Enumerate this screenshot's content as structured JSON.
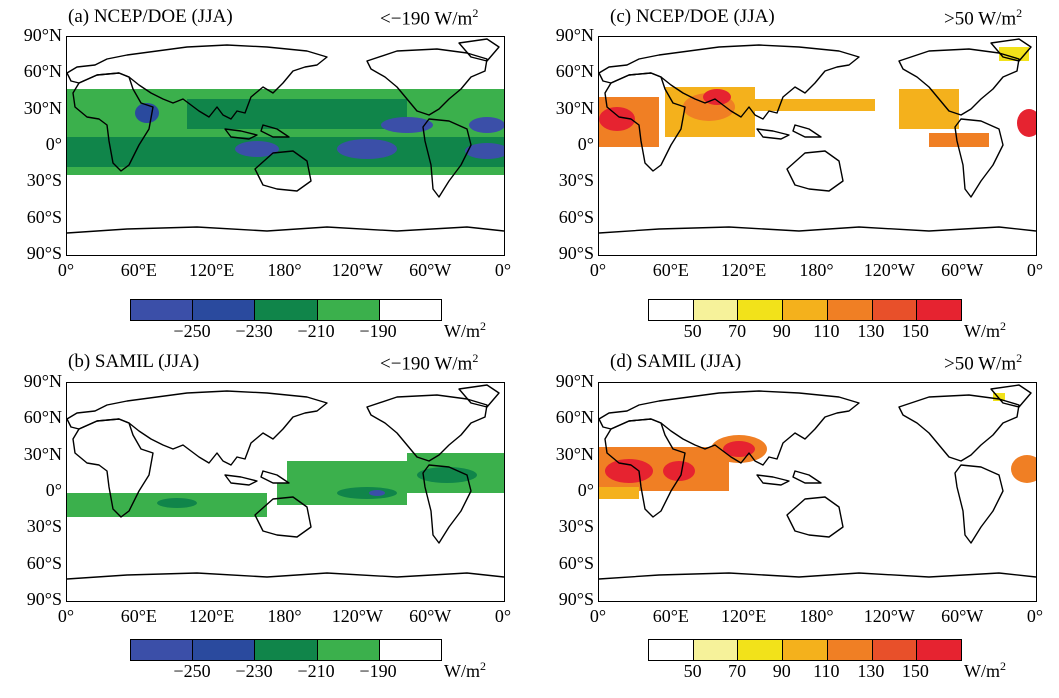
{
  "panels": [
    {
      "title": "(a)  NCEP/DOE (JJA)",
      "threshold_prefix": "<−190 W/m",
      "threshold_sup": "2",
      "palette": "cool",
      "colorbar_colors": [
        "#3b4fa8",
        "#2a4a9e",
        "#10854a",
        "#3bb04c",
        "#ffffff"
      ],
      "colorbar_labels": [
        "−250",
        "−230",
        "−210",
        "−190"
      ],
      "unit": "W/m",
      "unit_sup": "2"
    },
    {
      "title": "(c)  NCEP/DOE (JJA)",
      "threshold_prefix": ">50 W/m",
      "threshold_sup": "2",
      "palette": "warm",
      "colorbar_colors": [
        "#ffffff",
        "#f6f29a",
        "#f2e21a",
        "#f4b11c",
        "#f07f24",
        "#e8502a",
        "#e62330"
      ],
      "colorbar_labels": [
        "50",
        "70",
        "90",
        "110",
        "130",
        "150"
      ],
      "unit": "W/m",
      "unit_sup": "2"
    },
    {
      "title": "(b)  SAMIL (JJA)",
      "threshold_prefix": "<−190 W/m",
      "threshold_sup": "2",
      "palette": "cool",
      "colorbar_colors": [
        "#3b4fa8",
        "#2a4a9e",
        "#10854a",
        "#3bb04c",
        "#ffffff"
      ],
      "colorbar_labels": [
        "−250",
        "−230",
        "−210",
        "−190"
      ],
      "unit": "W/m",
      "unit_sup": "2"
    },
    {
      "title": "(d)  SAMIL (JJA)",
      "threshold_prefix": ">50 W/m",
      "threshold_sup": "2",
      "palette": "warm",
      "colorbar_colors": [
        "#ffffff",
        "#f6f29a",
        "#f2e21a",
        "#f4b11c",
        "#f07f24",
        "#e8502a",
        "#e62330"
      ],
      "colorbar_labels": [
        "50",
        "70",
        "90",
        "110",
        "130",
        "150"
      ],
      "unit": "W/m",
      "unit_sup": "2"
    }
  ],
  "lat_labels": [
    "90°N",
    "60°N",
    "30°N",
    "0°",
    "30°S",
    "60°S",
    "90°S"
  ],
  "lon_labels": [
    "0°",
    "60°E",
    "120°E",
    "180°",
    "120°W",
    "60°W",
    "0°"
  ]
}
